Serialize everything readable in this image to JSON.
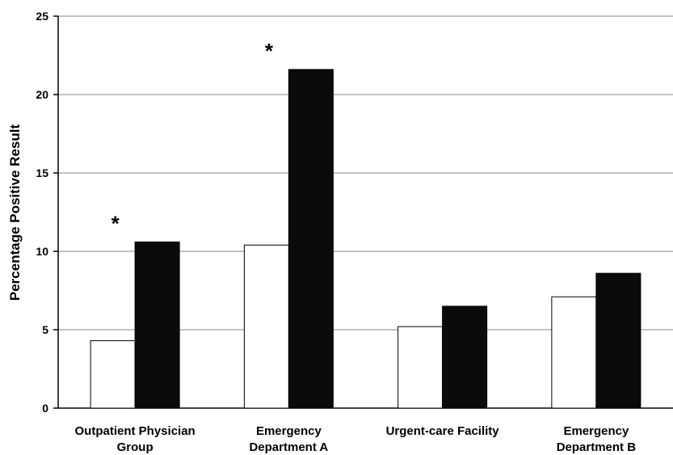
{
  "chart_data": {
    "type": "bar",
    "title": "",
    "xlabel": "",
    "ylabel": "Percentage Positive Result",
    "ylim": [
      0,
      25
    ],
    "yticks": [
      0,
      5,
      10,
      15,
      20,
      25
    ],
    "grid": true,
    "legend": "none",
    "categories": [
      [
        "Outpatient Physician",
        "Group"
      ],
      [
        "Emergency",
        "Department A"
      ],
      [
        "Urgent-care Facility"
      ],
      [
        "Emergency",
        "Department B"
      ]
    ],
    "series": [
      {
        "values": [
          4.3,
          10.4,
          5.2,
          7.1
        ],
        "fill": "#ffffff",
        "stroke": "#000000"
      },
      {
        "values": [
          10.6,
          21.6,
          6.5,
          8.6
        ],
        "fill": "#0b0b0b",
        "stroke": "#000000"
      }
    ],
    "annotations": [
      {
        "category_index": 0,
        "text": "*"
      },
      {
        "category_index": 1,
        "text": "*"
      }
    ]
  }
}
